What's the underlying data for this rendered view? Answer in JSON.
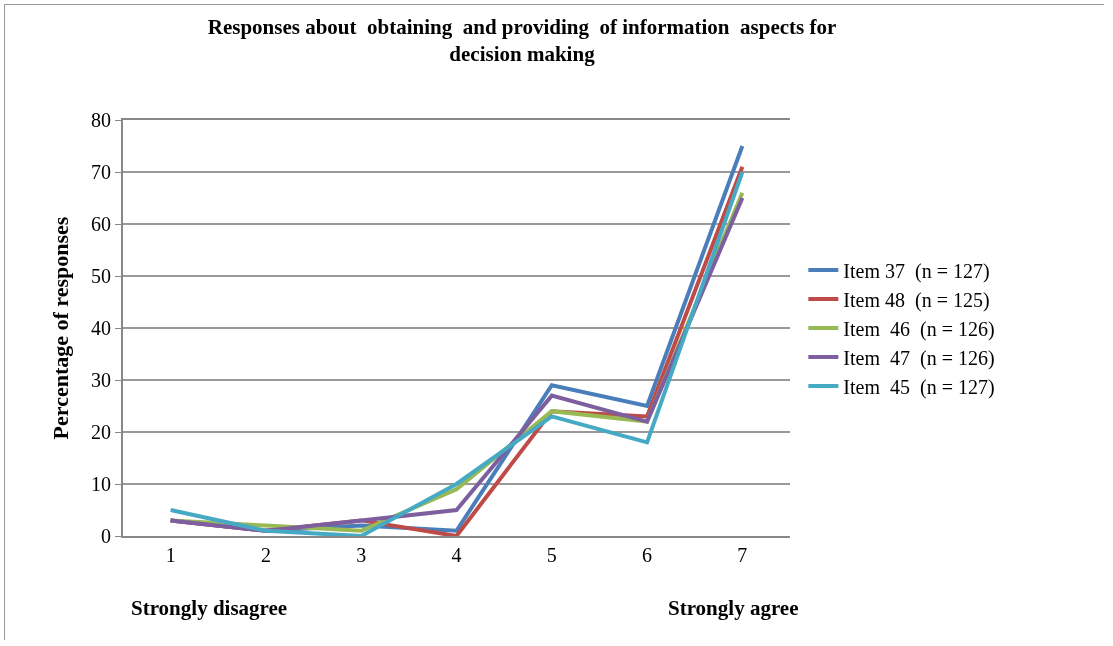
{
  "chart_data": {
    "type": "line",
    "title": "Responses about  obtaining  and providing  of information  aspects for decision making",
    "ylabel": "Percentage of responses",
    "categories": [
      "1",
      "2",
      "3",
      "4",
      "5",
      "6",
      "7"
    ],
    "annotations": [
      "Strongly disagree",
      "Strongly agree"
    ],
    "series": [
      {
        "name": "Item 37  (n = 127)",
        "color": "#4a7ebb",
        "values": [
          3,
          1,
          2,
          1,
          29,
          25,
          75
        ]
      },
      {
        "name": "Item 48  (n = 125)",
        "color": "#be4b48",
        "values": [
          3,
          1,
          3,
          0,
          24,
          23,
          71
        ]
      },
      {
        "name": "Item  46  (n = 126)",
        "color": "#98b954",
        "values": [
          3,
          2,
          1,
          9,
          24,
          22,
          66
        ]
      },
      {
        "name": "Item  47  (n = 126)",
        "color": "#7d5fa0",
        "values": [
          3,
          1,
          3,
          5,
          27,
          22,
          65
        ]
      },
      {
        "name": "Item  45  (n = 127)",
        "color": "#46aac5",
        "values": [
          5,
          1,
          0,
          10,
          23,
          18,
          70
        ]
      }
    ],
    "ylim": [
      0,
      80
    ],
    "yticks": [
      0,
      10,
      20,
      30,
      40,
      50,
      60,
      70,
      80
    ],
    "grid": "y",
    "legend": "right",
    "marker": "none",
    "line_style": "solid"
  }
}
